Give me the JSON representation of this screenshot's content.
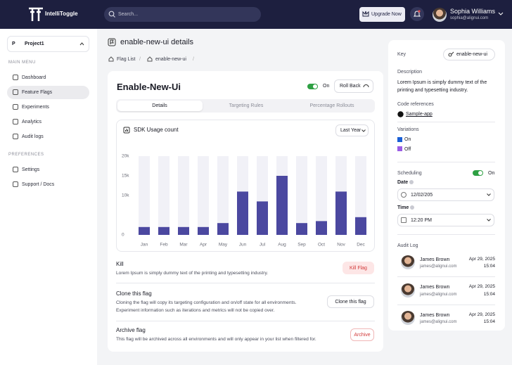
{
  "navbar": {
    "brand": "IntelliToggle",
    "search_placeholder": "Search...",
    "upgrade": "Upgrade Now",
    "user_name": "Sophia Williams",
    "user_email": "sophia@alignui.com"
  },
  "sidebar": {
    "project": "Project1",
    "project_initial": "P",
    "main_menu_label": "MAIN MENU",
    "main_menu": [
      "Dashboard",
      "Feature Flags",
      "Experiments",
      "Analytics",
      "Audit logs"
    ],
    "preferences_label": "PREFERENCES",
    "preferences": [
      "Settings",
      "Support / Docs"
    ]
  },
  "page": {
    "title": "enable-new-ui details",
    "breadcrumbs": [
      "Flag List",
      "enable-new-ui"
    ]
  },
  "flag": {
    "name": "Enable-New-Ui",
    "toggle_label": "On",
    "rollback": "Roll Back",
    "tabs": [
      "Details",
      "Targeting Rules",
      "Percentage Rollouts"
    ]
  },
  "usage_chart": {
    "type": "bar",
    "title": "SDK Usage count",
    "period": "Last Year",
    "categories": [
      "Jan",
      "Feb",
      "Mar",
      "Apr",
      "May",
      "Jun",
      "Jul",
      "Aug",
      "Sep",
      "Oct",
      "Nov",
      "Dec"
    ],
    "values": [
      2000,
      2000,
      2000,
      2000,
      3000,
      11000,
      8500,
      15000,
      3000,
      3500,
      11000,
      4500
    ],
    "color": "#4b48a0",
    "ylim": [
      0,
      20000
    ],
    "yticks": [
      0,
      {
        "value": 10000,
        "label": "10k"
      },
      {
        "value": 15000,
        "label": "15k"
      },
      {
        "value": 20000,
        "label": "20k"
      }
    ]
  },
  "actions": [
    {
      "title": "Kill",
      "description": "Lorem Ipsum is simply dummy text of the printing and typesetting industry.",
      "button": "Kill Flag"
    },
    {
      "title": "Clone this flag",
      "description": "Cloning the flag will copy its targeting configuration and on/off state for all environments. Experiment information such as iterations and metrics will not be copied over.",
      "button": "Clone this flag"
    },
    {
      "title": "Archive flag",
      "description": "This flag will be archived across all environments and will only appear in your list when filtered for.",
      "button": "Archive"
    }
  ],
  "details": {
    "key_label": "Key",
    "key": "enable-new-ui",
    "description_label": "Description",
    "description": "Lorem Ipsum is simply dummy text of the printing and typesetting industry.",
    "code_label": "Code references",
    "code_ref": "Sample-app",
    "variations_label": "Variations",
    "variations": [
      "On",
      "Off"
    ],
    "scheduling_label": "Scheduling",
    "scheduling_toggle": "On",
    "date_label": "Date",
    "date": "12/02/205",
    "time_label": "Time",
    "time": "12:20 PM",
    "audit_label": "Audit Log",
    "audit": [
      {
        "name": "James Brown",
        "email": "james@alignui.com",
        "date": "Apr 29, 2025",
        "time": "15:04"
      },
      {
        "name": "James Brown",
        "email": "james@alignui.com",
        "date": "Apr 29, 2025",
        "time": "15:04"
      },
      {
        "name": "James Brown",
        "email": "james@alignui.com",
        "date": "Apr 29, 2025",
        "time": "15:04"
      }
    ]
  }
}
